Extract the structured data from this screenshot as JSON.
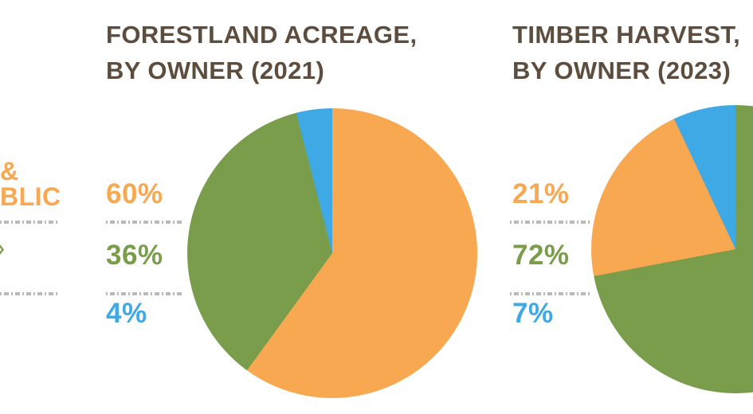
{
  "colors": {
    "orange": "#F8A851",
    "green": "#7A9D4B",
    "blue": "#3FA9E6",
    "title": "#5C4D3E",
    "dash": "#B9B9B9",
    "background": "#FFFFFF"
  },
  "legend_fragments": {
    "line1": "&",
    "line2": "BLIC"
  },
  "charts": [
    {
      "title_line1": "FORESTLAND ACREAGE,",
      "title_line2": "BY OWNER (2021)",
      "labels": [
        {
          "text": "60%",
          "color": "orange"
        },
        {
          "text": "36%",
          "color": "green"
        },
        {
          "text": "4%",
          "color": "blue"
        }
      ],
      "pie": {
        "order": [
          "orange",
          "green",
          "blue"
        ],
        "values": {
          "orange": 60,
          "green": 36,
          "blue": 4
        }
      }
    },
    {
      "title_line1": "TIMBER HARVEST,",
      "title_line2": "BY OWNER (2023)",
      "labels": [
        {
          "text": "21%",
          "color": "orange"
        },
        {
          "text": "72%",
          "color": "green"
        },
        {
          "text": "7%",
          "color": "blue"
        }
      ],
      "pie": {
        "order": [
          "green",
          "orange",
          "blue"
        ],
        "values": {
          "orange": 21,
          "green": 72,
          "blue": 7
        }
      }
    }
  ],
  "chart_data": [
    {
      "type": "pie",
      "title": "FORESTLAND ACREAGE, BY OWNER (2021)",
      "slices": [
        {
          "label": "60%",
          "value": 60,
          "color": "#F8A851"
        },
        {
          "label": "36%",
          "value": 36,
          "color": "#7A9D4B"
        },
        {
          "label": "4%",
          "value": 4,
          "color": "#3FA9E6"
        }
      ],
      "clockwise_order_from_top": [
        "60%",
        "36%",
        "4%"
      ],
      "legend": "truncated at left image edge; visible fragments: '&', 'BLIC'"
    },
    {
      "type": "pie",
      "title": "TIMBER HARVEST, BY OWNER (2023)",
      "slices": [
        {
          "label": "21%",
          "value": 21,
          "color": "#F8A851"
        },
        {
          "label": "72%",
          "value": 72,
          "color": "#7A9D4B"
        },
        {
          "label": "7%",
          "value": 7,
          "color": "#3FA9E6"
        }
      ],
      "clockwise_order_from_top": [
        "72%",
        "21%",
        "7%"
      ],
      "note": "pie partially clipped by right image edge"
    }
  ]
}
